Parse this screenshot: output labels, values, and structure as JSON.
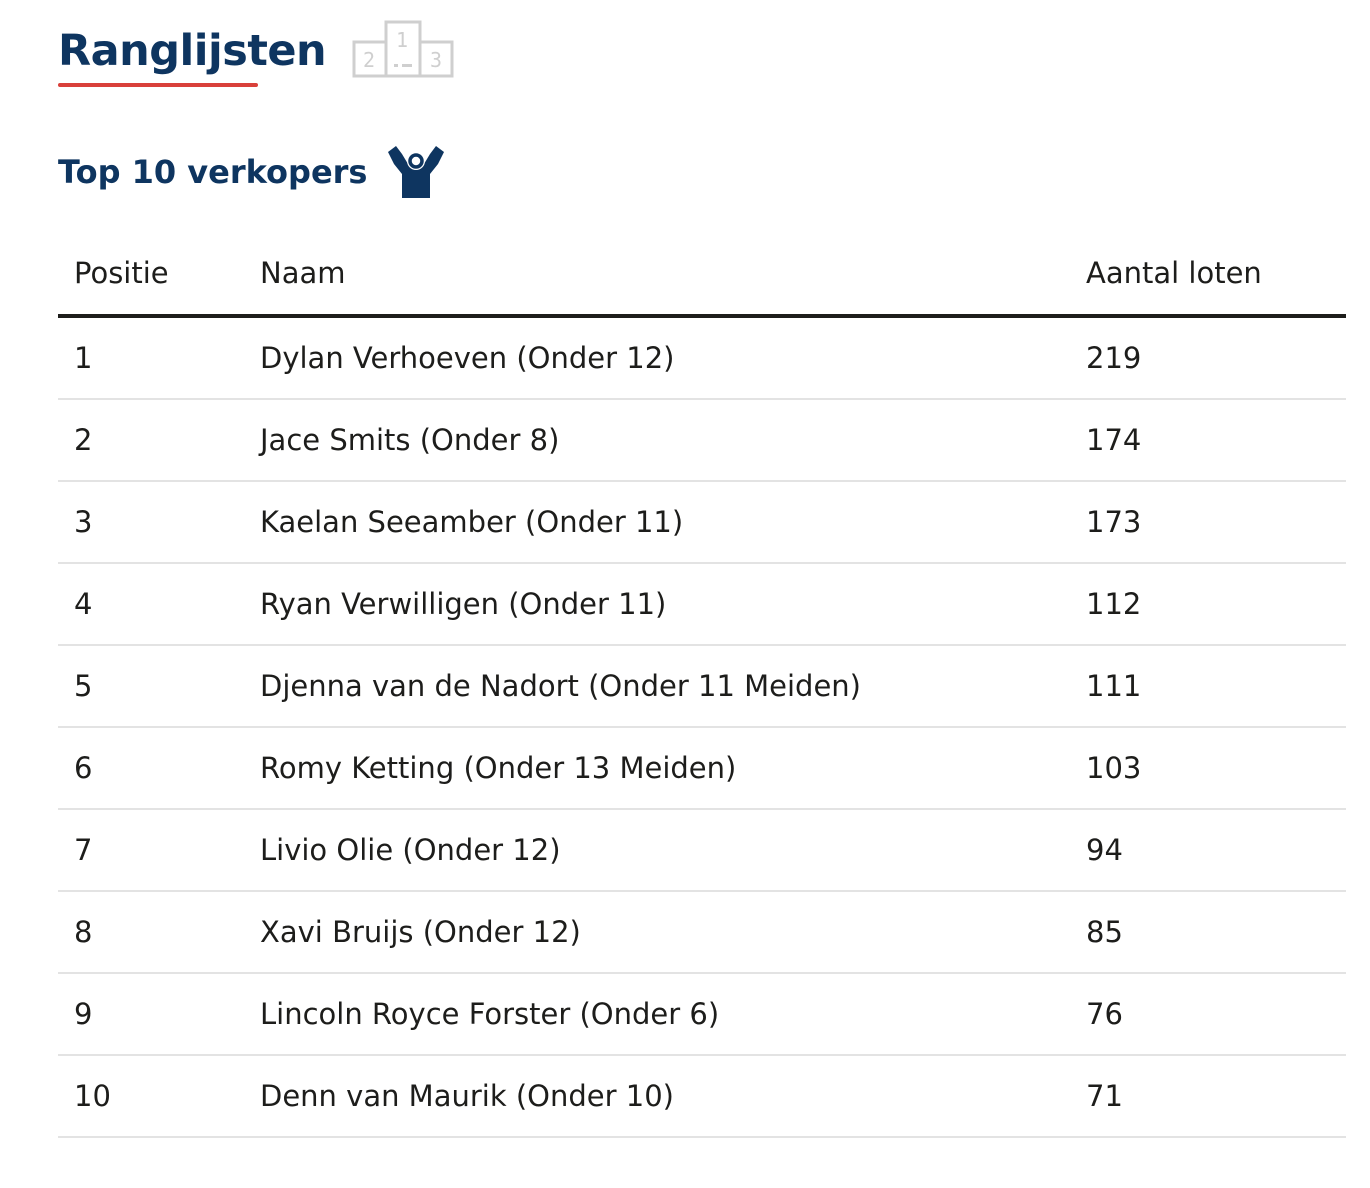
{
  "header": {
    "title": "Ranglijsten",
    "accent_color": "#d9403a",
    "title_color": "#0e3560",
    "podium_icon": "podium-icon",
    "podium_labels": [
      "2",
      "1",
      "3"
    ]
  },
  "section": {
    "title": "Top 10 verkopers",
    "icon": "cheering-person-icon"
  },
  "table": {
    "columns": [
      "Positie",
      "Naam",
      "Aantal loten"
    ],
    "rows": [
      {
        "position": "1",
        "name": "Dylan Verhoeven (Onder 12)",
        "count": "219"
      },
      {
        "position": "2",
        "name": "Jace Smits (Onder 8)",
        "count": "174"
      },
      {
        "position": "3",
        "name": "Kaelan Seeamber (Onder 11)",
        "count": "173"
      },
      {
        "position": "4",
        "name": "Ryan Verwilligen (Onder 11)",
        "count": "112"
      },
      {
        "position": "5",
        "name": "Djenna van de Nadort (Onder 11 Meiden)",
        "count": "111"
      },
      {
        "position": "6",
        "name": "Romy Ketting (Onder 13 Meiden)",
        "count": "103"
      },
      {
        "position": "7",
        "name": "Livio Olie (Onder 12)",
        "count": "94"
      },
      {
        "position": "8",
        "name": "Xavi Bruijs (Onder 12)",
        "count": "85"
      },
      {
        "position": "9",
        "name": "Lincoln Royce Forster (Onder 6)",
        "count": "76"
      },
      {
        "position": "10",
        "name": "Denn van Maurik (Onder 10)",
        "count": "71"
      }
    ]
  }
}
